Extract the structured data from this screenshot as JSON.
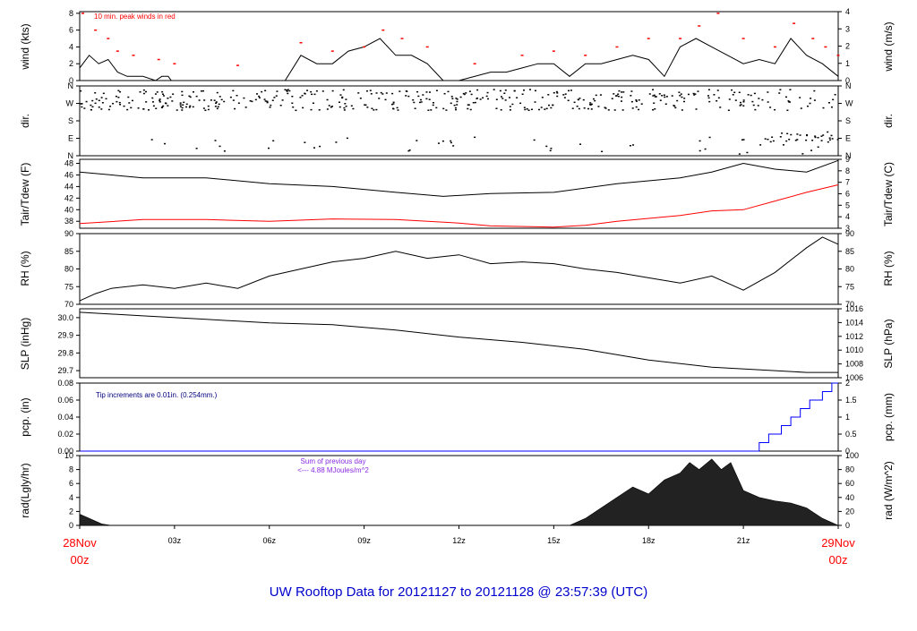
{
  "chart_data": [
    {
      "type": "line",
      "ylabel_left": "wind (kts)",
      "ylabel_right": "wind (m/s)",
      "ylim_left": [
        0,
        8.2
      ],
      "yticks_left": [
        "0",
        "2",
        "4",
        "6",
        "8"
      ],
      "yticks_right": [
        "0",
        "1",
        "2",
        "3",
        "4"
      ],
      "annotation": "10 min. peak winds in red",
      "series": [
        {
          "values": [
            [
              0,
              1.5
            ],
            [
              0.3,
              3
            ],
            [
              0.6,
              2
            ],
            [
              0.9,
              2.5
            ],
            [
              1.2,
              1
            ],
            [
              1.5,
              0.5
            ],
            [
              2,
              0.5
            ],
            [
              2.4,
              0
            ],
            [
              2.6,
              0.5
            ],
            [
              2.8,
              0.5
            ],
            [
              2.9,
              0
            ],
            [
              3.5,
              0
            ],
            [
              4.2,
              0
            ],
            [
              6.5,
              0
            ],
            [
              7,
              3
            ],
            [
              7.5,
              2
            ],
            [
              8,
              2
            ],
            [
              8.5,
              3.5
            ],
            [
              9,
              4
            ],
            [
              9.5,
              5
            ],
            [
              10,
              3
            ],
            [
              10.5,
              3
            ],
            [
              11,
              2
            ],
            [
              11.5,
              0
            ],
            [
              12,
              0
            ],
            [
              13,
              1
            ],
            [
              13.5,
              1
            ],
            [
              14,
              1.5
            ],
            [
              14.5,
              2
            ],
            [
              15,
              2
            ],
            [
              15.5,
              0.5
            ],
            [
              16,
              2
            ],
            [
              16.5,
              2
            ],
            [
              17,
              2.5
            ],
            [
              17.5,
              3
            ],
            [
              18,
              2.5
            ],
            [
              18.5,
              0.5
            ],
            [
              19,
              4
            ],
            [
              19.5,
              5
            ],
            [
              20,
              4
            ],
            [
              20.5,
              3
            ],
            [
              21,
              2
            ],
            [
              21.5,
              2.5
            ],
            [
              22,
              2
            ],
            [
              22.5,
              5
            ],
            [
              23,
              3
            ],
            [
              23.5,
              2
            ],
            [
              24,
              0.5
            ]
          ]
        },
        {
          "values": [
            [
              0.1,
              8
            ],
            [
              0.5,
              6
            ],
            [
              0.9,
              5
            ],
            [
              1.2,
              3.5
            ],
            [
              1.7,
              3
            ],
            [
              2.5,
              2.5
            ],
            [
              3,
              2
            ],
            [
              5,
              1.8
            ],
            [
              7,
              4.5
            ],
            [
              8,
              3.5
            ],
            [
              9,
              4
            ],
            [
              9.6,
              6
            ],
            [
              10.2,
              5
            ],
            [
              11,
              4
            ],
            [
              12.5,
              2
            ],
            [
              14,
              3
            ],
            [
              15,
              3.5
            ],
            [
              16,
              3
            ],
            [
              17,
              4
            ],
            [
              18,
              5
            ],
            [
              19,
              5
            ],
            [
              19.6,
              6.5
            ],
            [
              20.2,
              8
            ],
            [
              21,
              5
            ],
            [
              22,
              4
            ],
            [
              22.6,
              6.8
            ],
            [
              23.2,
              5
            ],
            [
              23.6,
              4
            ],
            [
              24,
              3
            ]
          ]
        }
      ]
    },
    {
      "type": "scatter",
      "ylabel_left": "dir.",
      "ylabel_right": "dir.",
      "yticks_left": [
        "N",
        "E",
        "S",
        "W",
        "N"
      ],
      "yticks_right": [
        "N",
        "E",
        "S",
        "W",
        "N"
      ]
    },
    {
      "type": "line",
      "ylabel_left": "Tair/Tdew (F)",
      "ylabel_right": "Tair/Tdew (C)",
      "ylim_left": [
        36.8,
        48.7
      ],
      "yticks_left": [
        "38",
        "40",
        "42",
        "44",
        "46",
        "48"
      ],
      "yticks_right": [
        "3",
        "4",
        "5",
        "6",
        "7",
        "8",
        "9"
      ],
      "series": [
        {
          "values": [
            [
              0,
              46.5
            ],
            [
              2,
              45.5
            ],
            [
              4,
              45.5
            ],
            [
              6,
              44.5
            ],
            [
              8,
              44
            ],
            [
              10,
              43
            ],
            [
              11.5,
              42.3
            ],
            [
              13,
              42.8
            ],
            [
              15,
              43
            ],
            [
              17,
              44.5
            ],
            [
              19,
              45.5
            ],
            [
              20,
              46.5
            ],
            [
              21,
              48
            ],
            [
              22,
              47
            ],
            [
              23,
              46.5
            ],
            [
              24,
              48.5
            ]
          ]
        },
        {
          "values": [
            [
              0,
              37.6
            ],
            [
              2,
              38.3
            ],
            [
              4,
              38.3
            ],
            [
              6,
              38
            ],
            [
              8,
              38.4
            ],
            [
              10,
              38.3
            ],
            [
              12,
              37.7
            ],
            [
              13,
              37.2
            ],
            [
              15,
              37
            ],
            [
              16,
              37.3
            ],
            [
              17,
              38
            ],
            [
              18,
              38.5
            ],
            [
              19,
              39
            ],
            [
              20,
              39.8
            ],
            [
              21,
              40
            ],
            [
              22,
              41.5
            ],
            [
              23,
              43
            ],
            [
              24,
              44.3
            ]
          ]
        }
      ]
    },
    {
      "type": "line",
      "ylabel_left": "RH (%)",
      "ylabel_right": "RH (%)",
      "ylim_left": [
        70,
        90
      ],
      "yticks_left": [
        "70",
        "75",
        "80",
        "85",
        "90"
      ],
      "yticks_right": [
        "70",
        "75",
        "80",
        "85",
        "90"
      ],
      "series": [
        {
          "values": [
            [
              0,
              71
            ],
            [
              0.5,
              73
            ],
            [
              1,
              74.5
            ],
            [
              2,
              75.5
            ],
            [
              3,
              74.5
            ],
            [
              4,
              76
            ],
            [
              5,
              74.5
            ],
            [
              6,
              78
            ],
            [
              7,
              80
            ],
            [
              8,
              82
            ],
            [
              9,
              83
            ],
            [
              10,
              85
            ],
            [
              11,
              83
            ],
            [
              12,
              84
            ],
            [
              13,
              81.5
            ],
            [
              14,
              82
            ],
            [
              15,
              81.5
            ],
            [
              16,
              80
            ],
            [
              17,
              79
            ],
            [
              18,
              77.5
            ],
            [
              19,
              76
            ],
            [
              20,
              78
            ],
            [
              21,
              74
            ],
            [
              22,
              79
            ],
            [
              23,
              86
            ],
            [
              23.5,
              89
            ],
            [
              24,
              87
            ]
          ]
        }
      ]
    },
    {
      "type": "line",
      "ylabel_left": "SLP (inHg)",
      "ylabel_right": "SLP (hPa)",
      "ylim_left": [
        29.66,
        30.05
      ],
      "yticks_left": [
        "29.7",
        "29.8",
        "29.9",
        "30.0"
      ],
      "yticks_right": [
        "1006",
        "1008",
        "1010",
        "1012",
        "1014",
        "1016"
      ],
      "series": [
        {
          "values": [
            [
              0,
              30.03
            ],
            [
              2,
              30.01
            ],
            [
              4,
              29.99
            ],
            [
              6,
              29.97
            ],
            [
              8,
              29.96
            ],
            [
              10,
              29.93
            ],
            [
              12,
              29.89
            ],
            [
              14,
              29.86
            ],
            [
              16,
              29.82
            ],
            [
              18,
              29.76
            ],
            [
              20,
              29.72
            ],
            [
              22,
              29.7
            ],
            [
              23,
              29.69
            ],
            [
              24,
              29.69
            ]
          ]
        }
      ]
    },
    {
      "type": "line",
      "ylabel_left": "pcp. (in)",
      "ylabel_right": "pcp. (mm)",
      "ylim_left": [
        0,
        0.08
      ],
      "yticks_left": [
        "0.00",
        "0.02",
        "0.04",
        "0.06",
        "0.08"
      ],
      "yticks_right": [
        "0",
        "0.5",
        "1",
        "1.5",
        "2"
      ],
      "annotation": "Tip increments are 0.01in. (0.254mm.)",
      "series": [
        {
          "values": [
            [
              0,
              0
            ],
            [
              21.5,
              0
            ],
            [
              21.5,
              0.01
            ],
            [
              21.8,
              0.01
            ],
            [
              21.8,
              0.02
            ],
            [
              22.2,
              0.02
            ],
            [
              22.2,
              0.03
            ],
            [
              22.5,
              0.03
            ],
            [
              22.5,
              0.04
            ],
            [
              22.8,
              0.04
            ],
            [
              22.8,
              0.05
            ],
            [
              23.1,
              0.05
            ],
            [
              23.1,
              0.06
            ],
            [
              23.5,
              0.06
            ],
            [
              23.5,
              0.07
            ],
            [
              23.8,
              0.07
            ],
            [
              23.8,
              0.08
            ],
            [
              24,
              0.08
            ]
          ]
        }
      ]
    },
    {
      "type": "area",
      "ylabel_left": "rad(Lgly/hr)",
      "ylabel_right": "rad (W/m^2)",
      "ylim_left": [
        0,
        10
      ],
      "yticks_left": [
        "0",
        "2",
        "4",
        "6",
        "8",
        "10"
      ],
      "yticks_right": [
        "0",
        "20",
        "40",
        "60",
        "80",
        "100"
      ],
      "annotation_line1": "Sum of previous day",
      "annotation_line2": "<--- 4.88 MJoules/m^2",
      "series": [
        {
          "values": [
            [
              0,
              1.6
            ],
            [
              0.3,
              1
            ],
            [
              0.7,
              0.2
            ],
            [
              1,
              0
            ],
            [
              15.5,
              0
            ],
            [
              16,
              1
            ],
            [
              16.5,
              2.5
            ],
            [
              17,
              4
            ],
            [
              17.5,
              5.5
            ],
            [
              18,
              4.5
            ],
            [
              18.5,
              6.5
            ],
            [
              19,
              7.5
            ],
            [
              19.3,
              9
            ],
            [
              19.6,
              8
            ],
            [
              20,
              9.5
            ],
            [
              20.3,
              8
            ],
            [
              20.6,
              9
            ],
            [
              21,
              5
            ],
            [
              21.5,
              4
            ],
            [
              22,
              3.5
            ],
            [
              22.5,
              3.2
            ],
            [
              23,
              2.5
            ],
            [
              23.5,
              1
            ],
            [
              24,
              0
            ]
          ]
        }
      ]
    }
  ],
  "xaxis": {
    "ticks": [
      "03z",
      "06z",
      "09z",
      "12z",
      "15z",
      "18z",
      "21z"
    ],
    "start_date": "28Nov",
    "start_time": "00z",
    "end_date": "29Nov",
    "end_time": "00z"
  },
  "footer": "UW Rooftop Data for 20121127  to  20121128 @ 23:57:39  (UTC)",
  "colors": {
    "accent": "#ff0000",
    "tip_text": "#000080",
    "rad_text": "#8a2be2",
    "footer_text": "#0000cc",
    "precip_line": "#0000ff"
  }
}
